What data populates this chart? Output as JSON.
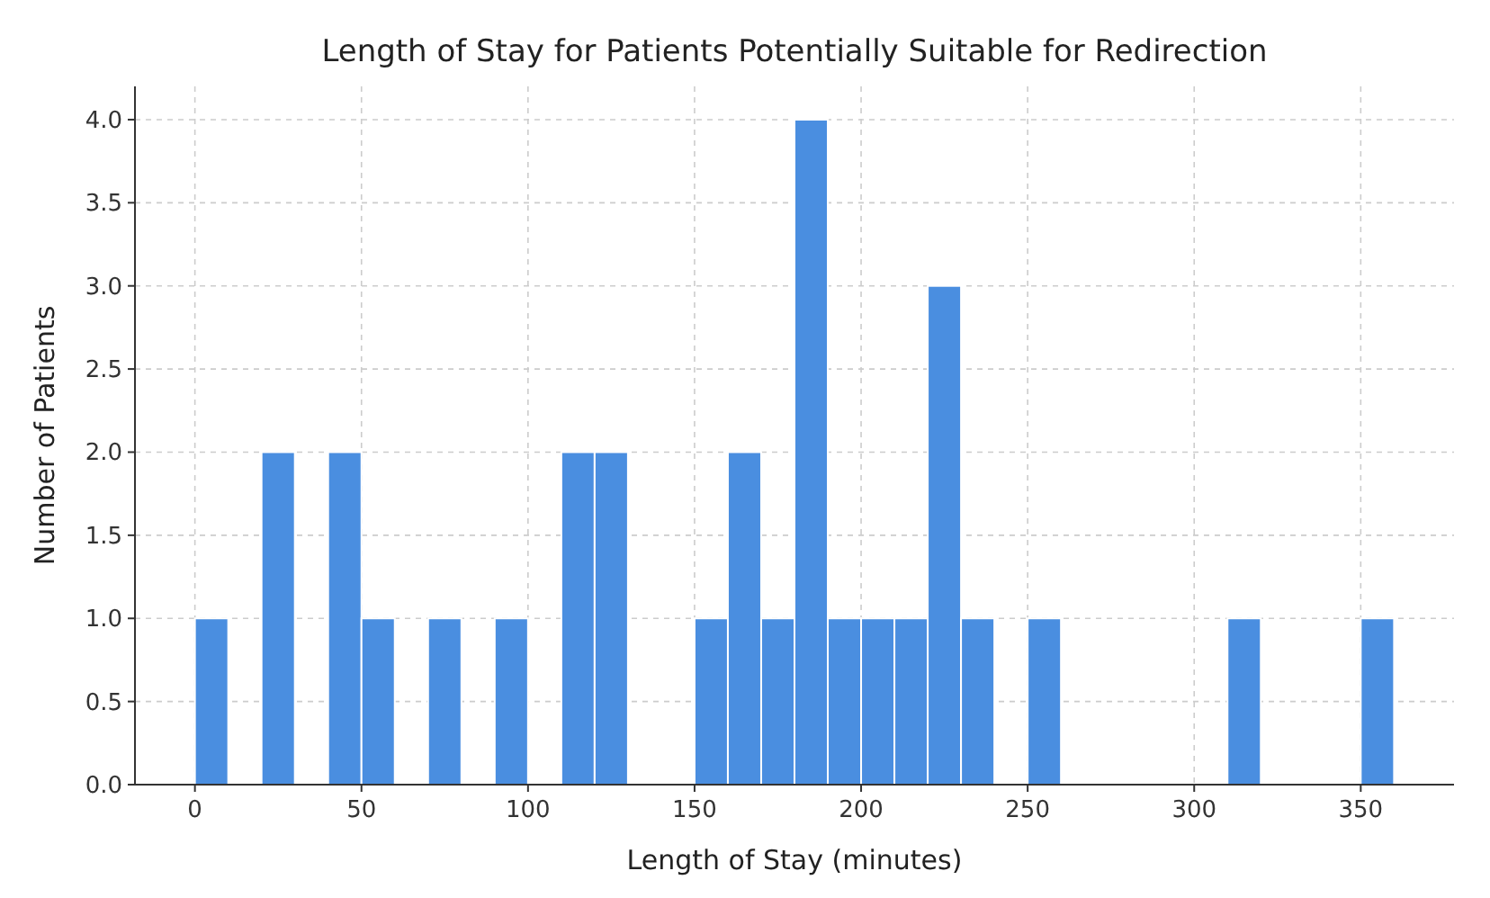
{
  "chart_data": {
    "type": "histogram",
    "title": "Length of Stay for Patients Potentially Suitable for Redirection",
    "xlabel": "Length of Stay (minutes)",
    "ylabel": "Number of Patients",
    "bins": [
      0,
      10,
      20,
      30,
      40,
      50,
      60,
      70,
      80,
      90,
      100,
      110,
      120,
      130,
      140,
      150,
      160,
      170,
      180,
      190,
      200,
      210,
      220,
      230,
      240,
      250,
      260,
      270,
      280,
      290,
      300,
      310,
      320,
      330,
      340,
      350,
      360
    ],
    "values": [
      1,
      0,
      2,
      0,
      2,
      1,
      0,
      1,
      0,
      1,
      0,
      2,
      2,
      0,
      0,
      1,
      2,
      1,
      4,
      1,
      1,
      1,
      3,
      1,
      0,
      1,
      0,
      0,
      0,
      0,
      0,
      1,
      0,
      0,
      0,
      1
    ],
    "color": "#4a8ee0",
    "xlim": [
      -18,
      378
    ],
    "ylim": [
      0,
      4.2
    ],
    "xticks": [
      0,
      50,
      100,
      150,
      200,
      250,
      300,
      350
    ],
    "yticks": [
      {
        "value": 0,
        "label": "0.0"
      },
      {
        "value": 0.5,
        "label": "0.5"
      },
      {
        "value": 1,
        "label": "1.0"
      },
      {
        "value": 1.5,
        "label": "1.5"
      },
      {
        "value": 2,
        "label": "2.0"
      },
      {
        "value": 2.5,
        "label": "2.5"
      },
      {
        "value": 3,
        "label": "3.0"
      },
      {
        "value": 3.5,
        "label": "3.5"
      },
      {
        "value": 4,
        "label": "4.0"
      }
    ],
    "grid": true
  }
}
